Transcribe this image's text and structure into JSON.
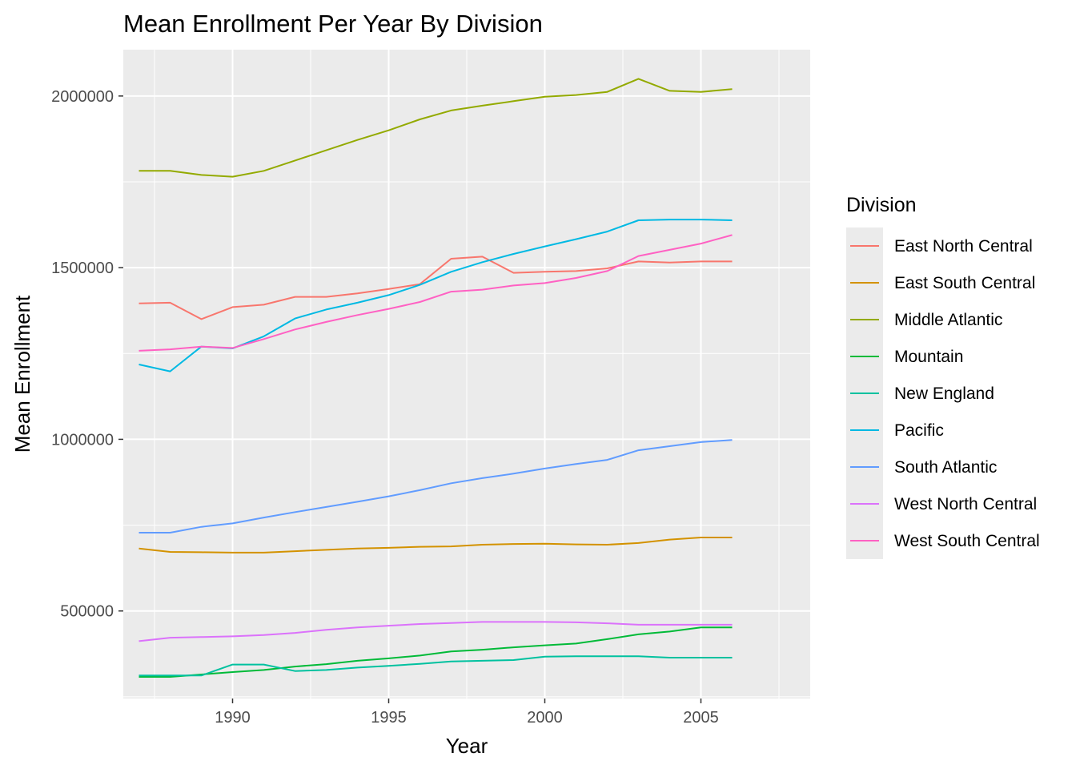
{
  "chart_data": {
    "type": "line",
    "title": "Mean Enrollment Per Year By Division",
    "xlabel": "Year",
    "ylabel": "Mean Enrollment",
    "xlim": [
      1986.5,
      2008.5
    ],
    "ylim": [
      245000,
      2135000
    ],
    "x_ticks": [
      1990,
      1995,
      2000,
      2005
    ],
    "y_ticks": [
      500000,
      1000000,
      1500000,
      2000000
    ],
    "x_tick_labels": [
      "1990",
      "1995",
      "2000",
      "2005"
    ],
    "y_tick_labels": [
      "500000",
      "1000000",
      "1500000",
      "2000000"
    ],
    "legend_title": "Division",
    "legend_position": "right",
    "grid": true,
    "panel_background": "#EBEBEB",
    "x": [
      1987,
      1988,
      1989,
      1990,
      1991,
      1992,
      1993,
      1994,
      1995,
      1996,
      1997,
      1998,
      1999,
      2000,
      2001,
      2002,
      2003,
      2004,
      2005,
      2006
    ],
    "series": [
      {
        "name": "East North Central",
        "color": "#F8766D",
        "values": [
          1396000,
          1398000,
          1350000,
          1385000,
          1392000,
          1415000,
          1415000,
          1425000,
          1438000,
          1452000,
          1526000,
          1532000,
          1485000,
          1488000,
          1490000,
          1498000,
          1518000,
          1515000,
          1518000,
          1518000
        ]
      },
      {
        "name": "East South Central",
        "color": "#D39200",
        "values": [
          682000,
          672000,
          671000,
          670000,
          670000,
          674000,
          678000,
          682000,
          684000,
          687000,
          688000,
          693000,
          695000,
          696000,
          694000,
          693000,
          698000,
          708000,
          714000,
          714000
        ]
      },
      {
        "name": "Middle Atlantic",
        "color": "#93AA00",
        "values": [
          1782000,
          1782000,
          1770000,
          1765000,
          1782000,
          1812000,
          1842000,
          1872000,
          1900000,
          1932000,
          1958000,
          1972000,
          1985000,
          1998000,
          2003000,
          2012000,
          2050000,
          2015000,
          2012000,
          2020000
        ]
      },
      {
        "name": "Mountain",
        "color": "#00BA38",
        "values": [
          308000,
          308000,
          315000,
          322000,
          328000,
          338000,
          345000,
          355000,
          362000,
          370000,
          382000,
          387000,
          394000,
          400000,
          405000,
          418000,
          432000,
          440000,
          452000,
          452000
        ]
      },
      {
        "name": "New England",
        "color": "#00C19F",
        "values": [
          312000,
          312000,
          312000,
          344000,
          344000,
          325000,
          328000,
          335000,
          340000,
          346000,
          353000,
          355000,
          357000,
          367000,
          368000,
          368000,
          368000,
          364000,
          364000,
          364000
        ]
      },
      {
        "name": "Pacific",
        "color": "#00B9E3",
        "values": [
          1218000,
          1198000,
          1270000,
          1265000,
          1300000,
          1352000,
          1378000,
          1398000,
          1420000,
          1450000,
          1488000,
          1516000,
          1540000,
          1562000,
          1583000,
          1605000,
          1638000,
          1640000,
          1640000,
          1638000
        ]
      },
      {
        "name": "South Atlantic",
        "color": "#619CFF",
        "values": [
          728000,
          728000,
          745000,
          755000,
          772000,
          788000,
          803000,
          818000,
          834000,
          852000,
          872000,
          887000,
          900000,
          915000,
          928000,
          940000,
          968000,
          980000,
          992000,
          998000
        ]
      },
      {
        "name": "West North Central",
        "color": "#DB72FB",
        "values": [
          412000,
          422000,
          424000,
          426000,
          430000,
          436000,
          445000,
          452000,
          457000,
          462000,
          465000,
          468000,
          468000,
          468000,
          467000,
          464000,
          460000,
          460000,
          460000,
          460000
        ]
      },
      {
        "name": "West South Central",
        "color": "#FF61C3",
        "values": [
          1258000,
          1262000,
          1270000,
          1266000,
          1292000,
          1320000,
          1342000,
          1362000,
          1380000,
          1400000,
          1430000,
          1436000,
          1448000,
          1455000,
          1470000,
          1490000,
          1534000,
          1552000,
          1570000,
          1595000
        ]
      }
    ]
  }
}
